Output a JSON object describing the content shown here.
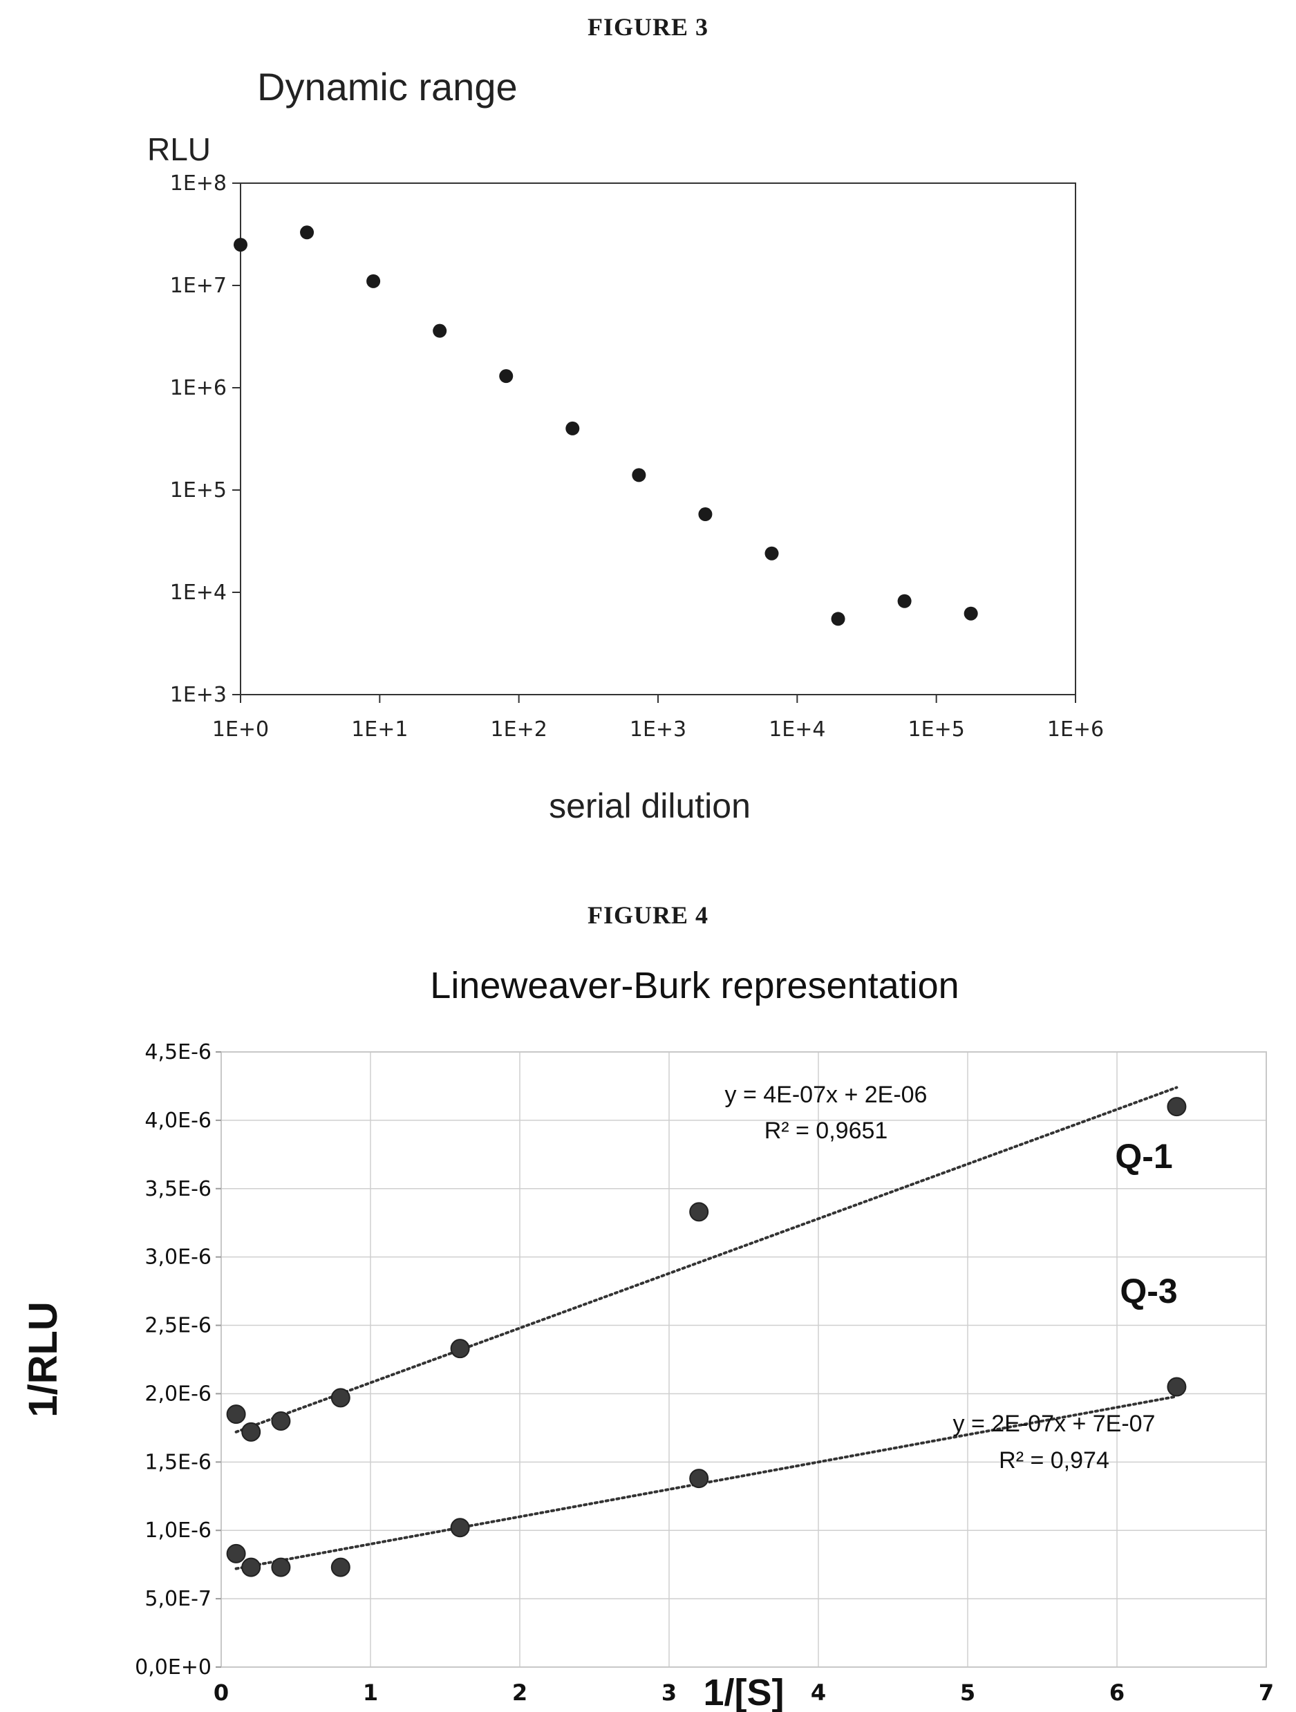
{
  "figure3": {
    "caption": "FIGURE 3",
    "chart_data": {
      "type": "scatter",
      "title": "Dynamic range",
      "xlabel": "serial dilution",
      "ylabel": "RLU",
      "xscale": "log",
      "yscale": "log",
      "xlim": [
        1,
        1000000
      ],
      "ylim": [
        1000,
        100000000
      ],
      "x_ticks": [
        "1E+0",
        "1E+1",
        "1E+2",
        "1E+3",
        "1E+4",
        "1E+5",
        "1E+6"
      ],
      "y_ticks": [
        "1E+3",
        "1E+4",
        "1E+5",
        "1E+6",
        "1E+7",
        "1E+8"
      ],
      "grid": false,
      "series": [
        {
          "x": [
            1,
            3,
            9,
            27,
            81,
            243,
            729,
            2187,
            6561,
            19683,
            59049,
            177147
          ],
          "y": [
            25000000,
            33000000,
            11000000,
            3600000,
            1300000,
            400000,
            140000,
            58000,
            24000,
            5500,
            8200,
            6200
          ]
        }
      ]
    }
  },
  "figure4": {
    "caption": "FIGURE 4",
    "chart_data": {
      "type": "scatter",
      "title": "Lineweaver-Burk representation",
      "xlabel": "1/[S]",
      "ylabel": "1/RLU",
      "xlim": [
        0,
        7
      ],
      "ylim": [
        0,
        4.5e-06
      ],
      "x_ticks": [
        "0",
        "1",
        "2",
        "3",
        "4",
        "5",
        "6",
        "7"
      ],
      "y_ticks": [
        "0,0E+0",
        "5,0E-7",
        "1,0E-6",
        "1,5E-6",
        "2,0E-6",
        "2,5E-6",
        "3,0E-6",
        "3,5E-6",
        "4,0E-6",
        "4,5E-6"
      ],
      "grid": true,
      "series": [
        {
          "name": "Q-1",
          "x": [
            0.1,
            0.2,
            0.4,
            0.8,
            1.6,
            3.2,
            6.4
          ],
          "y": [
            1.85e-06,
            1.72e-06,
            1.8e-06,
            1.97e-06,
            2.33e-06,
            3.33e-06,
            4.1e-06
          ],
          "trendline": {
            "slope": 4e-07,
            "intercept": 1.68e-06
          },
          "equation": "y = 4E-07x + 2E-06",
          "r2": "R² = 0,9651"
        },
        {
          "name": "Q-3",
          "x": [
            0.1,
            0.2,
            0.4,
            0.8,
            1.6,
            3.2,
            6.4
          ],
          "y": [
            8.3e-07,
            7.3e-07,
            7.3e-07,
            7.3e-07,
            1.02e-06,
            1.38e-06,
            2.05e-06
          ],
          "trendline": {
            "slope": 2e-07,
            "intercept": 7e-07
          },
          "equation": "y = 2E-07x + 7E-07",
          "r2": "R² = 0,974"
        }
      ]
    }
  }
}
